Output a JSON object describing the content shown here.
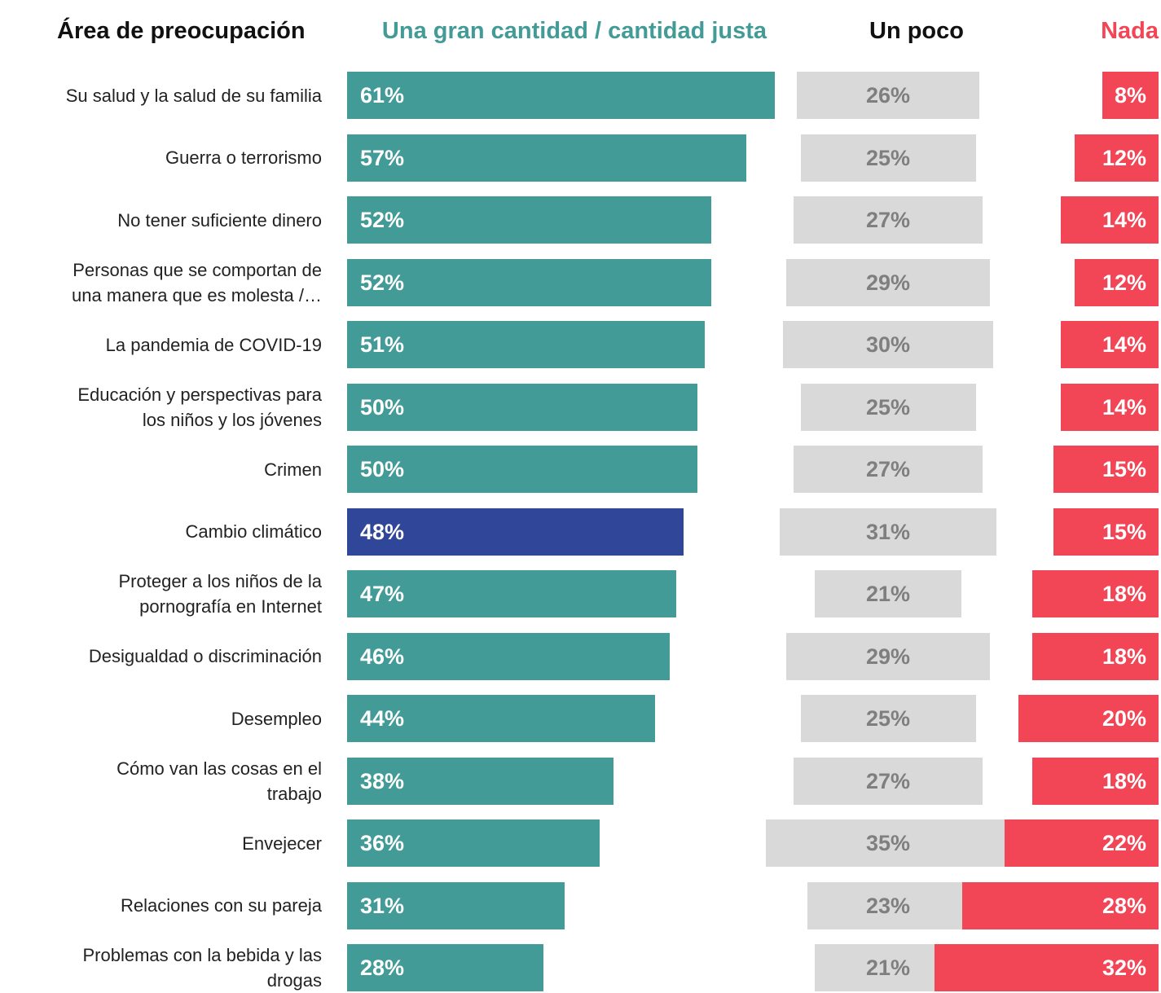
{
  "chart_data": {
    "type": "bar",
    "category_header": "Área de preocupación",
    "categories": [
      "Su salud y la salud de su familia",
      "Guerra o terrorismo",
      "No tener suficiente dinero",
      "Personas que se comportan de\nuna manera que es molesta /…",
      "La pandemia de COVID-19",
      "Educación y perspectivas para\nlos niños y los jóvenes",
      "Crimen",
      "Cambio climático",
      "Proteger a los niños de la\npornografía en Internet",
      "Desigualdad o discriminación",
      "Desempleo",
      "Cómo van las cosas en el\ntrabajo",
      "Envejecer",
      "Relaciones con su pareja",
      "Problemas con la bebida y las\ndrogas"
    ],
    "series": [
      {
        "name": "Una gran cantidad / cantidad justa",
        "color": "#439b98",
        "colors": [
          "#439b98",
          "#439b98",
          "#439b98",
          "#439b98",
          "#439b98",
          "#439b98",
          "#439b98",
          "#2f4699",
          "#439b98",
          "#439b98",
          "#439b98",
          "#439b98",
          "#439b98",
          "#439b98",
          "#439b98"
        ],
        "values": [
          61,
          57,
          52,
          52,
          51,
          50,
          50,
          48,
          47,
          46,
          44,
          38,
          36,
          31,
          28
        ],
        "value_labels": [
          "61%",
          "57%",
          "52%",
          "52%",
          "51%",
          "50%",
          "50%",
          "48%",
          "47%",
          "46%",
          "44%",
          "38%",
          "36%",
          "31%",
          "28%"
        ]
      },
      {
        "name": "Un poco",
        "color": "#d9d9d9",
        "values": [
          26,
          25,
          27,
          29,
          30,
          25,
          27,
          31,
          21,
          29,
          25,
          27,
          35,
          23,
          21
        ],
        "value_labels": [
          "26%",
          "25%",
          "27%",
          "29%",
          "30%",
          "25%",
          "27%",
          "31%",
          "21%",
          "29%",
          "25%",
          "27%",
          "35%",
          "23%",
          "21%"
        ]
      },
      {
        "name": "Nada",
        "color": "#f24555",
        "values": [
          8,
          12,
          14,
          12,
          14,
          14,
          15,
          15,
          18,
          18,
          20,
          18,
          22,
          28,
          32
        ],
        "value_labels": [
          "8%",
          "12%",
          "14%",
          "12%",
          "14%",
          "14%",
          "15%",
          "15%",
          "18%",
          "18%",
          "20%",
          "18%",
          "22%",
          "28%",
          "32%"
        ]
      }
    ]
  }
}
